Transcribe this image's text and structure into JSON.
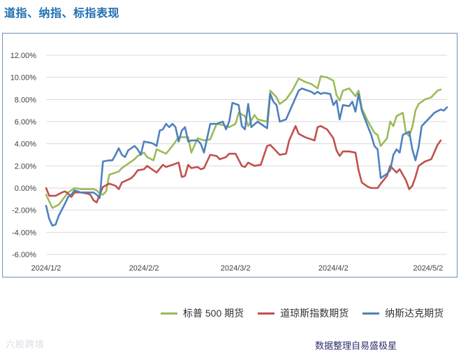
{
  "title": "道指、纳指、标指表现",
  "watermark": "六股跨境",
  "source": "数据整理自易盛极星",
  "chart_data": {
    "type": "line",
    "ylim": [
      -0.06,
      0.12
    ],
    "xlim": [
      0,
      127
    ],
    "y_ticks": [
      "12.00%",
      "10.00%",
      "8.00%",
      "6.00%",
      "4.00%",
      "2.00%",
      "0.00%",
      "-2.00%",
      "-4.00%",
      "-6.00%"
    ],
    "x_ticks": [
      {
        "label": "2024/1/2",
        "x": 0
      },
      {
        "label": "2024/2/2",
        "x": 31
      },
      {
        "label": "2024/3/2",
        "x": 60
      },
      {
        "label": "2024/4/2",
        "x": 91
      },
      {
        "label": "2024/5/2",
        "x": 121
      }
    ],
    "grid": "horizontal",
    "legend_position": "bottom",
    "series": [
      {
        "name": "标普 500 期货",
        "color": "#9bbb59",
        "points": [
          [
            0,
            -0.6
          ],
          [
            2,
            -1.8
          ],
          [
            4,
            -1.5
          ],
          [
            7,
            -0.4
          ],
          [
            9,
            0.0
          ],
          [
            11,
            -0.1
          ],
          [
            13,
            -0.1
          ],
          [
            15,
            -0.1
          ],
          [
            16,
            -0.2
          ],
          [
            17,
            -0.5
          ],
          [
            18,
            -0.6
          ],
          [
            19,
            -0.3
          ],
          [
            20,
            1.2
          ],
          [
            23,
            1.5
          ],
          [
            24,
            1.8
          ],
          [
            26,
            2.2
          ],
          [
            28,
            2.6
          ],
          [
            29,
            2.9
          ],
          [
            31,
            3.2
          ],
          [
            32,
            2.8
          ],
          [
            34,
            2.5
          ],
          [
            35,
            3.5
          ],
          [
            38,
            3.1
          ],
          [
            40,
            3.8
          ],
          [
            42,
            4.6
          ],
          [
            45,
            4.6
          ],
          [
            46,
            3.2
          ],
          [
            48,
            4.5
          ],
          [
            50,
            4.3
          ],
          [
            52,
            4.4
          ],
          [
            54,
            5.8
          ],
          [
            56,
            5.7
          ],
          [
            58,
            5.5
          ],
          [
            60,
            5.8
          ],
          [
            61,
            6.8
          ],
          [
            63,
            6.5
          ],
          [
            64,
            5.6
          ],
          [
            66,
            6.6
          ],
          [
            67,
            6.2
          ],
          [
            70,
            6.0
          ],
          [
            71,
            8.8
          ],
          [
            73,
            8.2
          ],
          [
            74,
            7.6
          ],
          [
            76,
            8.0
          ],
          [
            78,
            8.8
          ],
          [
            80,
            9.9
          ],
          [
            82,
            9.6
          ],
          [
            84,
            9.4
          ],
          [
            85,
            9.2
          ],
          [
            86,
            9.0
          ],
          [
            87,
            10.1
          ],
          [
            89,
            10.0
          ],
          [
            91,
            9.7
          ],
          [
            92,
            8.4
          ],
          [
            93,
            7.9
          ],
          [
            94,
            8.8
          ],
          [
            96,
            9.0
          ],
          [
            98,
            8.3
          ],
          [
            99,
            8.8
          ],
          [
            100,
            7.2
          ],
          [
            102,
            6.0
          ],
          [
            104,
            5.0
          ],
          [
            105,
            4.8
          ],
          [
            106,
            3.8
          ],
          [
            108,
            4.5
          ],
          [
            109,
            6.0
          ],
          [
            110,
            5.6
          ],
          [
            111,
            6.5
          ],
          [
            113,
            6.8
          ],
          [
            114,
            5.0
          ],
          [
            115,
            4.7
          ],
          [
            116,
            5.5
          ],
          [
            117,
            7.0
          ],
          [
            118,
            7.6
          ],
          [
            120,
            8.0
          ],
          [
            122,
            8.2
          ],
          [
            124,
            8.8
          ],
          [
            125,
            8.9
          ]
        ]
      },
      {
        "name": "道琼斯指数期货",
        "color": "#c0504d",
        "points": [
          [
            0,
            0.0
          ],
          [
            1,
            -0.7
          ],
          [
            3,
            -0.7
          ],
          [
            5,
            -0.4
          ],
          [
            6,
            -0.3
          ],
          [
            7,
            -0.5
          ],
          [
            8,
            -0.8
          ],
          [
            9,
            -0.4
          ],
          [
            11,
            -0.4
          ],
          [
            13,
            -0.5
          ],
          [
            14,
            -0.6
          ],
          [
            15,
            -1.1
          ],
          [
            16,
            -1.3
          ],
          [
            17,
            -0.6
          ],
          [
            18,
            0.1
          ],
          [
            20,
            0.4
          ],
          [
            22,
            0.2
          ],
          [
            23,
            -0.1
          ],
          [
            24,
            0.5
          ],
          [
            27,
            0.9
          ],
          [
            28,
            1.2
          ],
          [
            29,
            1.6
          ],
          [
            31,
            1.7
          ],
          [
            32,
            2.0
          ],
          [
            34,
            1.6
          ],
          [
            35,
            1.4
          ],
          [
            37,
            2.1
          ],
          [
            38,
            1.9
          ],
          [
            40,
            2.1
          ],
          [
            42,
            2.3
          ],
          [
            43,
            1.0
          ],
          [
            44,
            1.1
          ],
          [
            45,
            2.1
          ],
          [
            46,
            1.8
          ],
          [
            48,
            1.9
          ],
          [
            49,
            1.7
          ],
          [
            50,
            1.8
          ],
          [
            52,
            3.0
          ],
          [
            54,
            2.9
          ],
          [
            55,
            2.6
          ],
          [
            57,
            2.8
          ],
          [
            58,
            3.1
          ],
          [
            60,
            3.1
          ],
          [
            62,
            2.0
          ],
          [
            63,
            1.9
          ],
          [
            64,
            2.3
          ],
          [
            66,
            2.0
          ],
          [
            68,
            2.1
          ],
          [
            70,
            3.8
          ],
          [
            71,
            3.9
          ],
          [
            72,
            3.6
          ],
          [
            74,
            3.0
          ],
          [
            76,
            3.1
          ],
          [
            77,
            4.3
          ],
          [
            79,
            5.6
          ],
          [
            80,
            4.9
          ],
          [
            82,
            4.6
          ],
          [
            83,
            4.5
          ],
          [
            84,
            4.4
          ],
          [
            85,
            4.3
          ],
          [
            86,
            5.5
          ],
          [
            87,
            5.6
          ],
          [
            89,
            5.3
          ],
          [
            91,
            4.5
          ],
          [
            92,
            3.4
          ],
          [
            93,
            2.9
          ],
          [
            94,
            3.3
          ],
          [
            96,
            3.3
          ],
          [
            98,
            3.2
          ],
          [
            99,
            1.6
          ],
          [
            100,
            0.5
          ],
          [
            102,
            0.1
          ],
          [
            103,
            0.0
          ],
          [
            104,
            0.0
          ],
          [
            105,
            0.0
          ],
          [
            106,
            0.4
          ],
          [
            108,
            1.1
          ],
          [
            109,
            2.0
          ],
          [
            110,
            1.7
          ],
          [
            111,
            1.4
          ],
          [
            112,
            1.7
          ],
          [
            113,
            1.2
          ],
          [
            114,
            0.7
          ],
          [
            115,
            -0.1
          ],
          [
            116,
            0.2
          ],
          [
            117,
            1.0
          ],
          [
            118,
            2.0
          ],
          [
            120,
            2.4
          ],
          [
            122,
            2.6
          ],
          [
            124,
            3.9
          ],
          [
            125,
            4.3
          ]
        ]
      },
      {
        "name": "纳斯达克期货",
        "color": "#4f81bd",
        "points": [
          [
            0,
            -1.6
          ],
          [
            1,
            -2.8
          ],
          [
            2,
            -3.4
          ],
          [
            3,
            -3.3
          ],
          [
            4,
            -2.5
          ],
          [
            6,
            -1.4
          ],
          [
            7,
            -0.8
          ],
          [
            8,
            -0.6
          ],
          [
            9,
            -0.2
          ],
          [
            11,
            -0.4
          ],
          [
            13,
            -0.4
          ],
          [
            15,
            -0.4
          ],
          [
            16,
            -0.6
          ],
          [
            17,
            -0.9
          ],
          [
            18,
            2.4
          ],
          [
            20,
            2.5
          ],
          [
            21,
            2.5
          ],
          [
            22,
            3.0
          ],
          [
            23,
            3.6
          ],
          [
            24,
            3.0
          ],
          [
            25,
            2.8
          ],
          [
            26,
            3.4
          ],
          [
            27,
            3.6
          ],
          [
            28,
            3.8
          ],
          [
            29,
            3.5
          ],
          [
            30,
            3.0
          ],
          [
            31,
            4.2
          ],
          [
            33,
            4.1
          ],
          [
            34,
            4.0
          ],
          [
            35,
            3.8
          ],
          [
            36,
            5.2
          ],
          [
            37,
            5.3
          ],
          [
            38,
            5.8
          ],
          [
            39,
            5.5
          ],
          [
            40,
            5.8
          ],
          [
            41,
            5.5
          ],
          [
            42,
            4.2
          ],
          [
            43,
            5.2
          ],
          [
            44,
            5.5
          ],
          [
            45,
            4.2
          ],
          [
            46,
            4.3
          ],
          [
            48,
            4.3
          ],
          [
            49,
            4.0
          ],
          [
            50,
            3.2
          ],
          [
            52,
            5.8
          ],
          [
            54,
            5.8
          ],
          [
            56,
            6.0
          ],
          [
            57,
            5.3
          ],
          [
            58,
            6.0
          ],
          [
            59,
            7.7
          ],
          [
            61,
            7.5
          ],
          [
            62,
            5.6
          ],
          [
            63,
            5.3
          ],
          [
            64,
            7.6
          ],
          [
            65,
            5.5
          ],
          [
            67,
            6.0
          ],
          [
            70,
            5.4
          ],
          [
            71,
            8.5
          ],
          [
            72,
            7.8
          ],
          [
            73,
            7.5
          ],
          [
            74,
            6.0
          ],
          [
            76,
            6.2
          ],
          [
            78,
            7.5
          ],
          [
            80,
            8.8
          ],
          [
            81,
            9.0
          ],
          [
            82,
            8.9
          ],
          [
            84,
            8.7
          ],
          [
            85,
            8.5
          ],
          [
            86,
            8.7
          ],
          [
            87,
            8.5
          ],
          [
            88,
            8.6
          ],
          [
            90,
            8.5
          ],
          [
            91,
            7.5
          ],
          [
            92,
            7.9
          ],
          [
            93,
            6.2
          ],
          [
            94,
            7.5
          ],
          [
            96,
            7.4
          ],
          [
            97,
            7.8
          ],
          [
            98,
            6.9
          ],
          [
            99,
            8.5
          ],
          [
            100,
            7.0
          ],
          [
            102,
            5.5
          ],
          [
            103,
            4.8
          ],
          [
            104,
            3.8
          ],
          [
            105,
            3.5
          ],
          [
            106,
            0.9
          ],
          [
            108,
            1.3
          ],
          [
            109,
            1.6
          ],
          [
            110,
            3.0
          ],
          [
            111,
            3.5
          ],
          [
            112,
            3.2
          ],
          [
            113,
            4.8
          ],
          [
            115,
            5.1
          ],
          [
            116,
            3.5
          ],
          [
            117,
            2.5
          ],
          [
            118,
            3.7
          ],
          [
            119,
            5.6
          ],
          [
            121,
            6.2
          ],
          [
            123,
            6.8
          ],
          [
            125,
            7.1
          ],
          [
            126,
            7.0
          ],
          [
            127,
            7.3
          ]
        ]
      }
    ]
  }
}
